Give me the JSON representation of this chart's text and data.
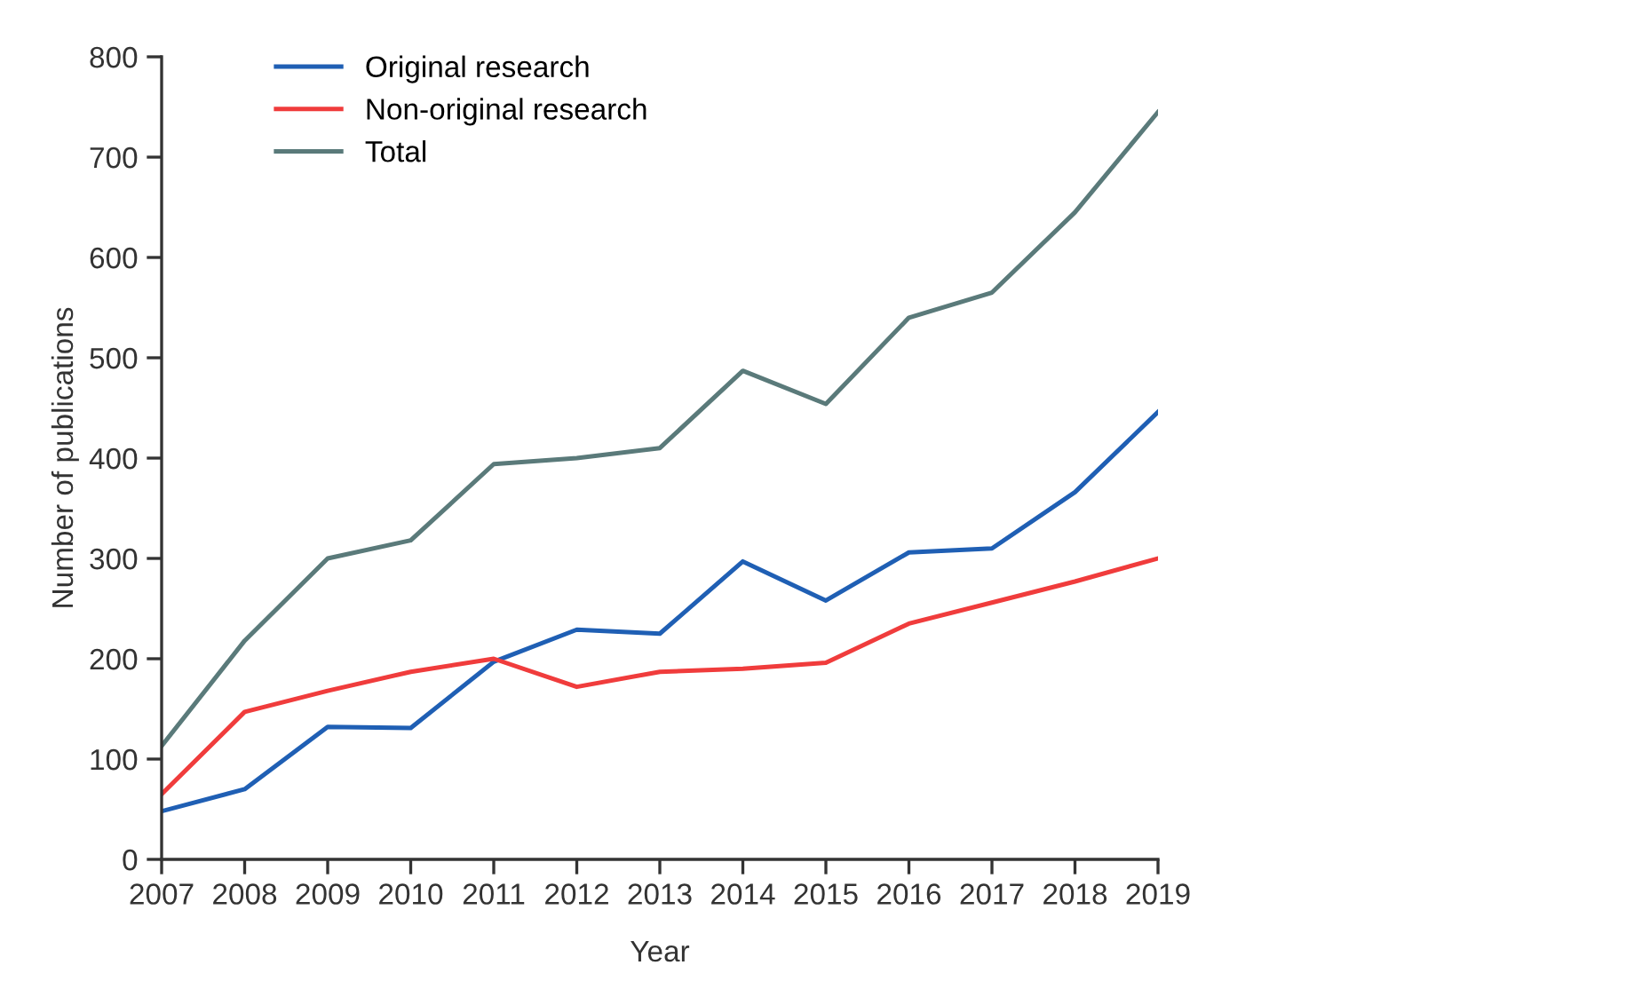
{
  "chart_data": {
    "type": "line",
    "xlabel": "Year",
    "ylabel": "Number of publications",
    "x": [
      2007,
      2008,
      2009,
      2010,
      2011,
      2012,
      2013,
      2014,
      2015,
      2016,
      2017,
      2018,
      2019
    ],
    "series": [
      {
        "name": "Original research",
        "color": "#1f5fb4",
        "values": [
          48,
          70,
          132,
          131,
          197,
          229,
          225,
          297,
          258,
          306,
          310,
          366,
          446
        ]
      },
      {
        "name": "Non-original research",
        "color": "#f03c3c",
        "values": [
          65,
          147,
          168,
          187,
          200,
          172,
          187,
          190,
          196,
          235,
          256,
          277,
          300
        ]
      },
      {
        "name": "Total",
        "color": "#5a7a7a",
        "values": [
          113,
          218,
          300,
          318,
          394,
          400,
          410,
          487,
          454,
          540,
          565,
          645,
          745
        ]
      }
    ],
    "xlim": [
      2007,
      2019
    ],
    "xticks": [
      2007,
      2008,
      2009,
      2010,
      2011,
      2012,
      2013,
      2014,
      2015,
      2016,
      2017,
      2018,
      2019
    ],
    "ylim": [
      0,
      800
    ],
    "yticks": [
      0,
      100,
      200,
      300,
      400,
      500,
      600,
      700,
      800
    ],
    "grid": false,
    "legend": "top left",
    "marker": "none",
    "line_style": "solid"
  }
}
